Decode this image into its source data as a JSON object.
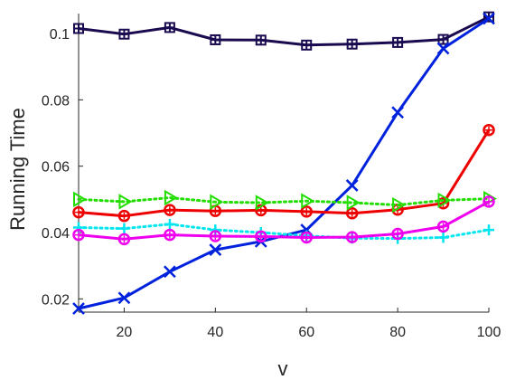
{
  "chart_data": {
    "type": "line",
    "xlabel": "v",
    "ylabel": "Running Time",
    "xlim": [
      10,
      100
    ],
    "ylim": [
      0.016,
      0.106
    ],
    "xticks": [
      20,
      40,
      60,
      80,
      100
    ],
    "yticks": [
      0.02,
      0.04,
      0.06,
      0.08,
      0.1
    ],
    "ytick_labels": [
      "0.02",
      "0.04",
      "0.06",
      "0.08",
      "0.1"
    ],
    "grid": false,
    "x": [
      10,
      20,
      30,
      40,
      50,
      60,
      70,
      80,
      90,
      100
    ],
    "series": [
      {
        "color": "#1a0a4f",
        "line": "solid",
        "marker": "square-plus",
        "values": [
          0.1015,
          0.0998,
          0.1018,
          0.0981,
          0.098,
          0.0965,
          0.0968,
          0.0973,
          0.0982,
          0.105
        ]
      },
      {
        "color": "#0022dd",
        "line": "solid",
        "marker": "x",
        "values": [
          0.0171,
          0.0203,
          0.0282,
          0.0348,
          0.0373,
          0.0408,
          0.0542,
          0.0762,
          0.0955,
          0.1045
        ]
      },
      {
        "color": "#ee0000",
        "line": "solid",
        "marker": "circle-star",
        "values": [
          0.0461,
          0.045,
          0.0468,
          0.0465,
          0.0467,
          0.0463,
          0.0458,
          0.0469,
          0.0488,
          0.0709
        ]
      },
      {
        "color": "#22dd00",
        "line": "dotted",
        "marker": "triangle-right",
        "values": [
          0.05,
          0.0493,
          0.0505,
          0.0492,
          0.049,
          0.0495,
          0.049,
          0.0483,
          0.0497,
          0.0502
        ]
      },
      {
        "color": "#00e5ee",
        "line": "dotted",
        "marker": "plus",
        "values": [
          0.0415,
          0.0412,
          0.0425,
          0.0408,
          0.04,
          0.039,
          0.0383,
          0.0382,
          0.0385,
          0.0408
        ]
      },
      {
        "color": "#ee00ee",
        "line": "solid",
        "marker": "circle-star",
        "values": [
          0.0393,
          0.038,
          0.0393,
          0.0389,
          0.0388,
          0.0385,
          0.0386,
          0.0396,
          0.0418,
          0.0493
        ]
      }
    ]
  }
}
